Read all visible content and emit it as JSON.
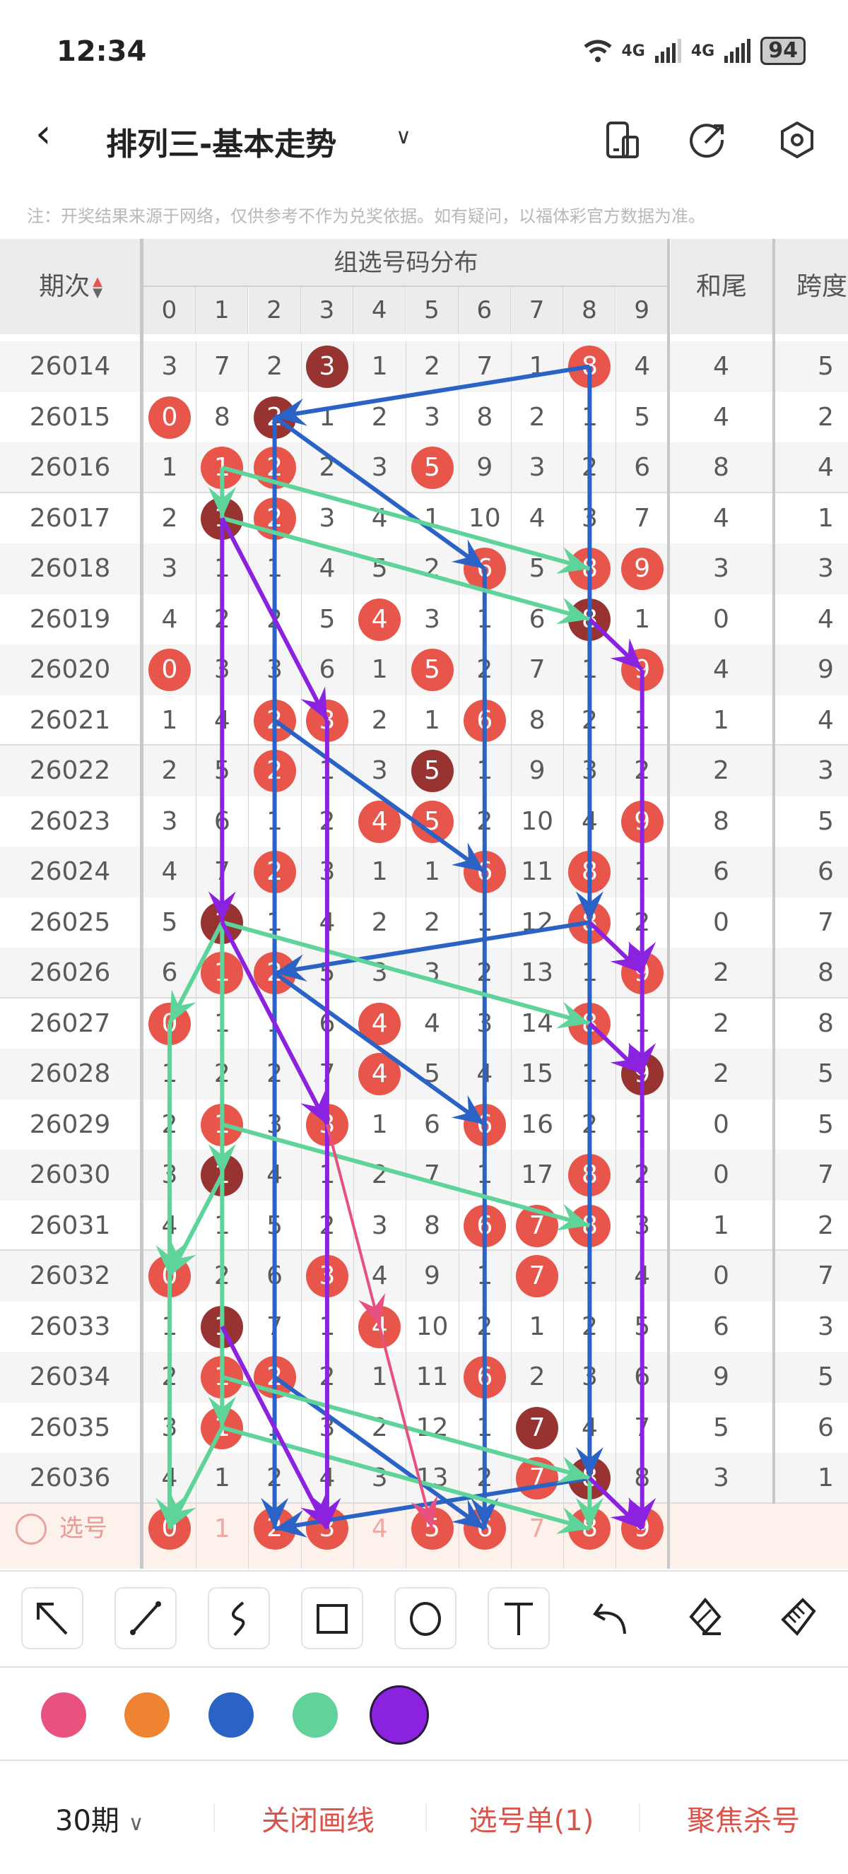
{
  "status_bar": {
    "time": "12:34",
    "network_1": "4G",
    "network_2": "4G",
    "battery": "94",
    "icons": [
      "wifi-icon",
      "signal-icon",
      "signal-icon",
      "battery-icon"
    ]
  },
  "nav": {
    "title": "排列三-基本走势",
    "icons": [
      "back-icon",
      "chevron-down-icon",
      "device-switch-icon",
      "share-icon",
      "settings-icon"
    ]
  },
  "note": "注：开奖结果来源于网络，仅供参考不作为兑奖依据。如有疑问，以福体彩官方数据为准。",
  "table": {
    "header": {
      "period": "期次",
      "distribution": "组选号码分布",
      "digits": [
        "0",
        "1",
        "2",
        "3",
        "4",
        "5",
        "6",
        "7",
        "8",
        "9"
      ],
      "sum_tail": "和尾",
      "span": "跨度"
    },
    "colors": {
      "hit": "#e8554a",
      "repeat": "#973431",
      "select_bg": "#fdf1ec"
    },
    "rows": [
      {
        "period": "26014",
        "cells": [
          "3",
          "7",
          "2",
          "D",
          "1",
          "2",
          "7",
          "1",
          "H",
          "4"
        ],
        "sum_tail": "4",
        "span": "5"
      },
      {
        "period": "26015",
        "cells": [
          "H",
          "8",
          "D",
          "1",
          "2",
          "3",
          "8",
          "2",
          "1",
          "5"
        ],
        "sum_tail": "4",
        "span": "2"
      },
      {
        "period": "26016",
        "cells": [
          "1",
          "H",
          "H",
          "2",
          "3",
          "H",
          "9",
          "3",
          "2",
          "6"
        ],
        "sum_tail": "8",
        "span": "4"
      },
      {
        "period": "26017",
        "cells": [
          "2",
          "D",
          "H",
          "3",
          "4",
          "1",
          "10",
          "4",
          "3",
          "7"
        ],
        "sum_tail": "4",
        "span": "1"
      },
      {
        "period": "26018",
        "cells": [
          "3",
          "1",
          "1",
          "4",
          "5",
          "2",
          "H",
          "5",
          "H",
          "H"
        ],
        "sum_tail": "3",
        "span": "3"
      },
      {
        "period": "26019",
        "cells": [
          "4",
          "2",
          "2",
          "5",
          "H",
          "3",
          "1",
          "6",
          "D",
          "1"
        ],
        "sum_tail": "0",
        "span": "4"
      },
      {
        "period": "26020",
        "cells": [
          "H",
          "3",
          "3",
          "6",
          "1",
          "H",
          "2",
          "7",
          "1",
          "H"
        ],
        "sum_tail": "4",
        "span": "9"
      },
      {
        "period": "26021",
        "cells": [
          "1",
          "4",
          "H",
          "H",
          "2",
          "1",
          "H",
          "8",
          "2",
          "1"
        ],
        "sum_tail": "1",
        "span": "4"
      },
      {
        "period": "26022",
        "cells": [
          "2",
          "5",
          "H",
          "1",
          "3",
          "D",
          "1",
          "9",
          "3",
          "2"
        ],
        "sum_tail": "2",
        "span": "3"
      },
      {
        "period": "26023",
        "cells": [
          "3",
          "6",
          "1",
          "2",
          "H",
          "H",
          "2",
          "10",
          "4",
          "H"
        ],
        "sum_tail": "8",
        "span": "5"
      },
      {
        "period": "26024",
        "cells": [
          "4",
          "7",
          "H",
          "3",
          "1",
          "1",
          "H",
          "11",
          "H",
          "1"
        ],
        "sum_tail": "6",
        "span": "6"
      },
      {
        "period": "26025",
        "cells": [
          "5",
          "D",
          "1",
          "4",
          "2",
          "2",
          "1",
          "12",
          "H",
          "2"
        ],
        "sum_tail": "0",
        "span": "7"
      },
      {
        "period": "26026",
        "cells": [
          "6",
          "H",
          "H",
          "5",
          "3",
          "3",
          "2",
          "13",
          "1",
          "H"
        ],
        "sum_tail": "2",
        "span": "8"
      },
      {
        "period": "26027",
        "cells": [
          "H",
          "1",
          "1",
          "6",
          "H",
          "4",
          "3",
          "14",
          "H",
          "1"
        ],
        "sum_tail": "2",
        "span": "8"
      },
      {
        "period": "26028",
        "cells": [
          "1",
          "2",
          "2",
          "7",
          "H",
          "5",
          "4",
          "15",
          "1",
          "D"
        ],
        "sum_tail": "2",
        "span": "5"
      },
      {
        "period": "26029",
        "cells": [
          "2",
          "H",
          "3",
          "H",
          "1",
          "6",
          "H",
          "16",
          "2",
          "1"
        ],
        "sum_tail": "0",
        "span": "5"
      },
      {
        "period": "26030",
        "cells": [
          "3",
          "D",
          "4",
          "1",
          "2",
          "7",
          "1",
          "17",
          "H",
          "2"
        ],
        "sum_tail": "0",
        "span": "7"
      },
      {
        "period": "26031",
        "cells": [
          "4",
          "1",
          "5",
          "2",
          "3",
          "8",
          "H",
          "H",
          "H",
          "3"
        ],
        "sum_tail": "1",
        "span": "2"
      },
      {
        "period": "26032",
        "cells": [
          "H",
          "2",
          "6",
          "H",
          "4",
          "9",
          "1",
          "H",
          "1",
          "4"
        ],
        "sum_tail": "0",
        "span": "7"
      },
      {
        "period": "26033",
        "cells": [
          "1",
          "D",
          "7",
          "1",
          "H",
          "10",
          "2",
          "1",
          "2",
          "5"
        ],
        "sum_tail": "6",
        "span": "3"
      },
      {
        "period": "26034",
        "cells": [
          "2",
          "H",
          "H",
          "2",
          "1",
          "11",
          "H",
          "2",
          "3",
          "6"
        ],
        "sum_tail": "9",
        "span": "5"
      },
      {
        "period": "26035",
        "cells": [
          "3",
          "H",
          "1",
          "3",
          "2",
          "12",
          "1",
          "D",
          "4",
          "7"
        ],
        "sum_tail": "5",
        "span": "6"
      },
      {
        "period": "26036",
        "cells": [
          "4",
          "1",
          "2",
          "4",
          "3",
          "13",
          "2",
          "H",
          "D",
          "8"
        ],
        "sum_tail": "3",
        "span": "1"
      }
    ],
    "select_row": {
      "label": "选号",
      "selected": [
        0,
        2,
        3,
        5,
        6,
        8,
        9
      ],
      "digits": [
        "0",
        "1",
        "2",
        "3",
        "4",
        "5",
        "6",
        "7",
        "8",
        "9"
      ]
    }
  },
  "drawings": {
    "colors": {
      "blue": "#2a63c5",
      "green": "#5ed39a",
      "purple": "#8a22e0",
      "pink": "#e8507f"
    },
    "lines": [
      {
        "c": "blue",
        "from": [
          "26014",
          8
        ],
        "to": [
          "26015",
          2
        ],
        "arrow": true
      },
      {
        "c": "blue",
        "from": [
          "26015",
          2
        ],
        "to": [
          "26018",
          6
        ],
        "arrow": true
      },
      {
        "c": "blue",
        "from": [
          "26015",
          2
        ],
        "to": [
          "select",
          2
        ],
        "arrow": true
      },
      {
        "c": "blue",
        "from": [
          "26018",
          6
        ],
        "to": [
          "select",
          6
        ],
        "arrow": true
      },
      {
        "c": "blue",
        "from": [
          "26014",
          8
        ],
        "to": [
          "26025",
          8
        ],
        "arrow": true
      },
      {
        "c": "blue",
        "from": [
          "26025",
          8
        ],
        "to": [
          "26036",
          8
        ],
        "arrow": true
      },
      {
        "c": "blue",
        "from": [
          "26021",
          2
        ],
        "to": [
          "26024",
          6
        ],
        "arrow": true
      },
      {
        "c": "blue",
        "from": [
          "26025",
          8
        ],
        "to": [
          "26026",
          2
        ],
        "arrow": true
      },
      {
        "c": "blue",
        "from": [
          "26026",
          2
        ],
        "to": [
          "26029",
          6
        ],
        "arrow": true
      },
      {
        "c": "blue",
        "from": [
          "26034",
          2
        ],
        "to": [
          "select",
          6
        ],
        "arrow": true
      },
      {
        "c": "blue",
        "from": [
          "26036",
          8
        ],
        "to": [
          "select",
          2
        ],
        "arrow": true
      },
      {
        "c": "green",
        "from": [
          "26016",
          1
        ],
        "to": [
          "26018",
          8
        ],
        "arrow": true
      },
      {
        "c": "green",
        "from": [
          "26016",
          1
        ],
        "to": [
          "26017",
          1
        ],
        "arrow": true
      },
      {
        "c": "green",
        "from": [
          "26017",
          1
        ],
        "to": [
          "26019",
          8
        ],
        "arrow": true
      },
      {
        "c": "green",
        "from": [
          "26025",
          1
        ],
        "to": [
          "26027",
          8
        ],
        "arrow": true
      },
      {
        "c": "green",
        "from": [
          "26025",
          1
        ],
        "to": [
          "26027",
          0
        ],
        "arrow": true
      },
      {
        "c": "green",
        "from": [
          "26027",
          0
        ],
        "to": [
          "26032",
          0
        ],
        "arrow": true
      },
      {
        "c": "green",
        "from": [
          "26032",
          0
        ],
        "to": [
          "select",
          0
        ],
        "arrow": true
      },
      {
        "c": "green",
        "from": [
          "26025",
          1
        ],
        "to": [
          "26030",
          1
        ],
        "arrow": true
      },
      {
        "c": "green",
        "from": [
          "26029",
          1
        ],
        "to": [
          "26031",
          8
        ],
        "arrow": true
      },
      {
        "c": "green",
        "from": [
          "26030",
          1
        ],
        "to": [
          "26032",
          0
        ],
        "arrow": true
      },
      {
        "c": "green",
        "from": [
          "26030",
          1
        ],
        "to": [
          "26035",
          1
        ],
        "arrow": true
      },
      {
        "c": "green",
        "from": [
          "26034",
          1
        ],
        "to": [
          "26036",
          8
        ],
        "arrow": true
      },
      {
        "c": "green",
        "from": [
          "26035",
          1
        ],
        "to": [
          "select",
          8
        ],
        "arrow": true
      },
      {
        "c": "green",
        "from": [
          "26035",
          1
        ],
        "to": [
          "select",
          0
        ],
        "arrow": true
      },
      {
        "c": "green",
        "from": [
          "26036",
          8
        ],
        "to": [
          "select",
          8
        ],
        "arrow": true
      },
      {
        "c": "purple",
        "from": [
          "26017",
          1
        ],
        "to": [
          "26021",
          3
        ],
        "arrow": true
      },
      {
        "c": "purple",
        "from": [
          "26017",
          1
        ],
        "to": [
          "26025",
          1
        ],
        "arrow": true
      },
      {
        "c": "purple",
        "from": [
          "26021",
          3
        ],
        "to": [
          "select",
          3
        ],
        "arrow": true
      },
      {
        "c": "purple",
        "from": [
          "26019",
          8
        ],
        "to": [
          "26020",
          9
        ],
        "arrow": true
      },
      {
        "c": "purple",
        "from": [
          "26020",
          9
        ],
        "to": [
          "26026",
          9
        ],
        "arrow": true
      },
      {
        "c": "purple",
        "from": [
          "26026",
          9
        ],
        "to": [
          "26028",
          9
        ],
        "arrow": true
      },
      {
        "c": "purple",
        "from": [
          "26028",
          9
        ],
        "to": [
          "select",
          9
        ],
        "arrow": true
      },
      {
        "c": "purple",
        "from": [
          "26025",
          8
        ],
        "to": [
          "26026",
          9
        ],
        "arrow": true
      },
      {
        "c": "purple",
        "from": [
          "26027",
          8
        ],
        "to": [
          "26028",
          9
        ],
        "arrow": true
      },
      {
        "c": "purple",
        "from": [
          "26025",
          1
        ],
        "to": [
          "26029",
          3
        ],
        "arrow": true
      },
      {
        "c": "purple",
        "from": [
          "26033",
          1
        ],
        "to": [
          "select",
          3
        ],
        "arrow": true
      },
      {
        "c": "purple",
        "from": [
          "26036",
          8
        ],
        "to": [
          "select",
          9
        ],
        "arrow": true
      },
      {
        "c": "pink",
        "from": [
          "26029",
          3
        ],
        "to": [
          "26033",
          4
        ],
        "arrow": true
      },
      {
        "c": "pink",
        "from": [
          "26033",
          4
        ],
        "to": [
          "select",
          5
        ],
        "arrow": true
      }
    ]
  },
  "toolbar": {
    "tools": [
      "arrow-tool",
      "line-tool",
      "freehand-tool",
      "rectangle-tool",
      "circle-tool",
      "text-tool",
      "undo",
      "eraser",
      "clear-brush"
    ],
    "palette": [
      {
        "name": "pink",
        "hex": "#e9527f"
      },
      {
        "name": "orange",
        "hex": "#ee8331"
      },
      {
        "name": "blue",
        "hex": "#2a63c5"
      },
      {
        "name": "green",
        "hex": "#62d29b"
      },
      {
        "name": "purple",
        "hex": "#8a22e0"
      }
    ],
    "selected_color": "purple"
  },
  "bottom": {
    "periods": "30期",
    "close_drawing": "关闭画线",
    "pick_list": "选号单(1)",
    "focus_kill": "聚焦杀号"
  }
}
